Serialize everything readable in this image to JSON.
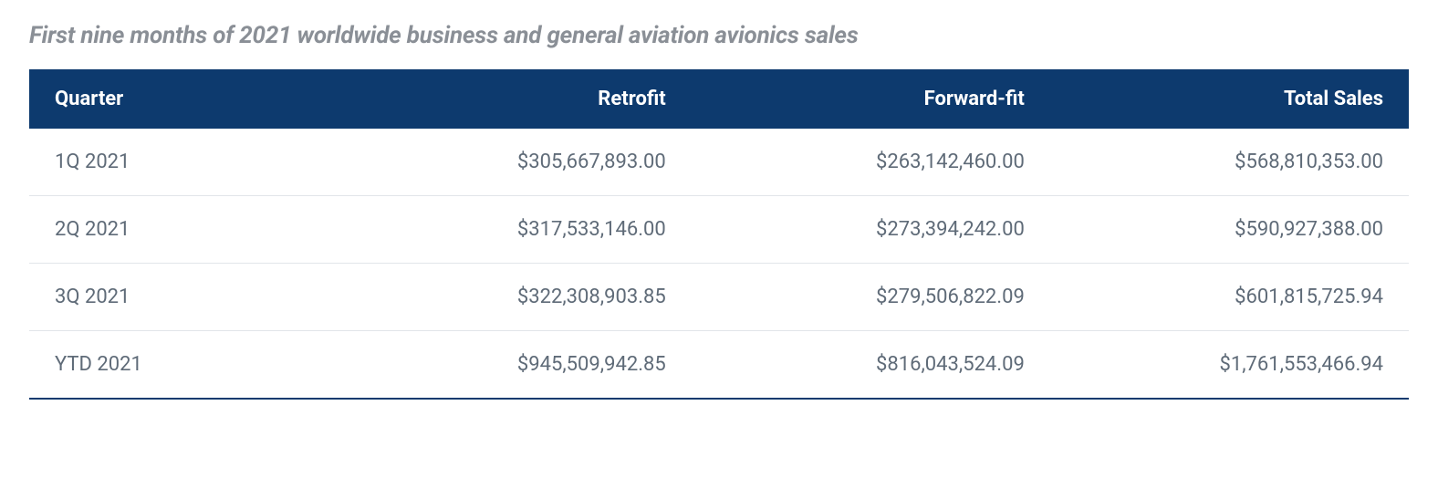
{
  "title": "First nine months of 2021 worldwide business and general aviation avionics sales",
  "table": {
    "columns": [
      "Quarter",
      "Retrofit",
      "Forward-fit",
      "Total Sales"
    ],
    "rows": [
      [
        "1Q 2021",
        "$305,667,893.00",
        "$263,142,460.00",
        "$568,810,353.00"
      ],
      [
        "2Q 2021",
        "$317,533,146.00",
        "$273,394,242.00",
        "$590,927,388.00"
      ],
      [
        "3Q 2021",
        "$322,308,903.85",
        "$279,506,822.09",
        "$601,815,725.94"
      ],
      [
        "YTD 2021",
        "$945,509,942.85",
        "$816,043,524.09",
        "$1,761,553,466.94"
      ]
    ],
    "header_bg": "#0d3a6e",
    "header_text_color": "#ffffff",
    "body_text_color": "#5f6b78",
    "row_border_color": "#e2e5e9",
    "bottom_border_color": "#0d3a6e",
    "title_color": "#8a8f96",
    "title_fontsize": 26,
    "header_fontsize": 22,
    "cell_fontsize": 22,
    "background_color": "#ffffff"
  }
}
